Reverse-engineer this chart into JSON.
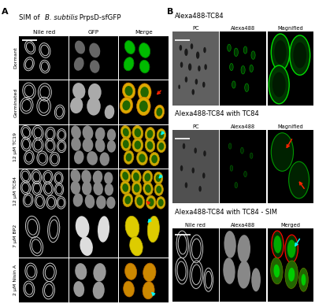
{
  "fig_width": 4.0,
  "fig_height": 3.86,
  "background_color": "#ffffff",
  "panel_A_label": "A",
  "panel_B_label": "B",
  "col_headers_A": [
    "Nile red",
    "GFP",
    "Merge"
  ],
  "row_labels_A": [
    "Dormant",
    "Germinated",
    "12 μM TC19",
    "12 μM TC84",
    "7 μM BP2",
    "2 μM Nisin A"
  ],
  "section_B_titles": [
    "Alexa488-TC84",
    "Alexa488-TC84 with TC84",
    "Alexa488-TC84 with TC84 - SIM"
  ],
  "col_headers_B1": [
    "PC",
    "Alexa488",
    "Magnified"
  ],
  "col_headers_B2": [
    "PC",
    "Alexa488",
    "Magnified"
  ],
  "col_headers_B3": [
    "Nile red",
    "Alexa488",
    "Merged"
  ],
  "arrow_cyan": "#00ffff",
  "arrow_red": "#ff2200",
  "scalebar_color": "#ffffff"
}
